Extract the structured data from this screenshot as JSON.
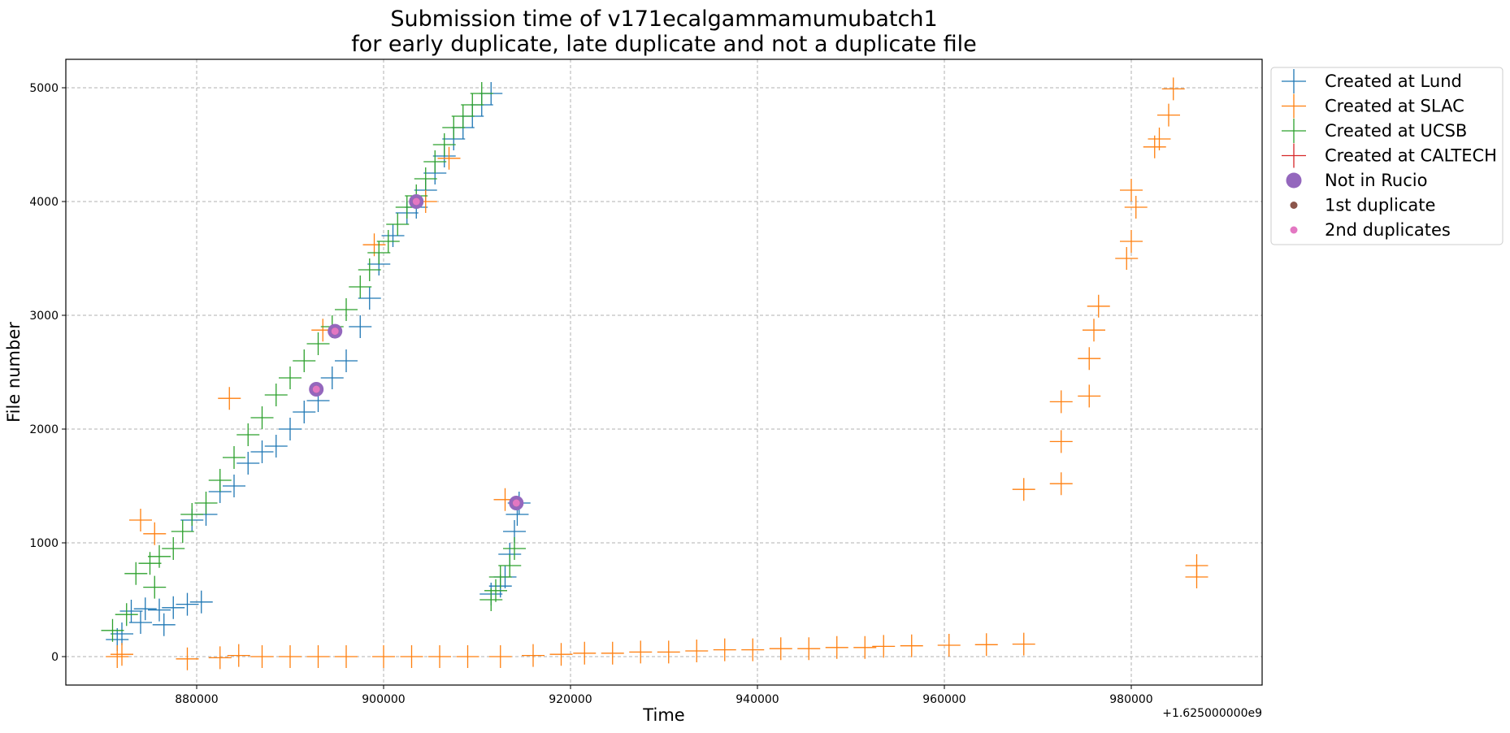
{
  "chart_data": {
    "type": "scatter",
    "title": [
      "Submission time of v171ecalgammamumubatch1",
      "for early duplicate, late duplicate and not a duplicate file"
    ],
    "xlabel": "Time",
    "ylabel": "File number",
    "x_offset_label": "+1.625000000e9",
    "xlim": [
      866000,
      994000
    ],
    "ylim": [
      -250,
      5250
    ],
    "xticks": [
      880000,
      900000,
      920000,
      940000,
      960000,
      980000
    ],
    "yticks": [
      0,
      1000,
      2000,
      3000,
      4000,
      5000
    ],
    "grid": true,
    "legend_position": "outside-top-right",
    "colors": {
      "lund": "#1f77b4",
      "slac": "#ff7f0e",
      "ucsb": "#2ca02c",
      "caltech": "#d62728",
      "not_in_rucio": "#9467bd",
      "first_duplicate": "#8c564b",
      "second_duplicates": "#e377c2"
    },
    "series": [
      {
        "name": "Created at Lund",
        "marker": "plus",
        "color": "#1f77b4",
        "points": [
          [
            871500,
            150
          ],
          [
            872000,
            200
          ],
          [
            873000,
            400
          ],
          [
            874500,
            420
          ],
          [
            876000,
            410
          ],
          [
            877500,
            430
          ],
          [
            879000,
            460
          ],
          [
            880500,
            480
          ],
          [
            874000,
            300
          ],
          [
            876500,
            280
          ],
          [
            879500,
            1200
          ],
          [
            881000,
            1250
          ],
          [
            882500,
            1450
          ],
          [
            884000,
            1500
          ],
          [
            885500,
            1700
          ],
          [
            887000,
            1800
          ],
          [
            888500,
            1850
          ],
          [
            890000,
            2000
          ],
          [
            891500,
            2150
          ],
          [
            893000,
            2250
          ],
          [
            894500,
            2450
          ],
          [
            896000,
            2600
          ],
          [
            897500,
            2900
          ],
          [
            898500,
            3150
          ],
          [
            899500,
            3450
          ],
          [
            901000,
            3700
          ],
          [
            902500,
            3900
          ],
          [
            903500,
            3950
          ],
          [
            904500,
            4100
          ],
          [
            905500,
            4250
          ],
          [
            906500,
            4400
          ],
          [
            907500,
            4550
          ],
          [
            908500,
            4650
          ],
          [
            909500,
            4750
          ],
          [
            910500,
            4850
          ],
          [
            911500,
            4950
          ],
          [
            911500,
            550
          ],
          [
            912500,
            620
          ],
          [
            913000,
            700
          ],
          [
            913500,
            900
          ],
          [
            914000,
            1100
          ],
          [
            914300,
            1250
          ],
          [
            914500,
            1350
          ]
        ]
      },
      {
        "name": "Created at SLAC",
        "marker": "plus",
        "color": "#ff7f0e",
        "points": [
          [
            871500,
            0
          ],
          [
            872000,
            20
          ],
          [
            874000,
            1200
          ],
          [
            875500,
            1080
          ],
          [
            879000,
            -20
          ],
          [
            882500,
            -10
          ],
          [
            884500,
            10
          ],
          [
            887000,
            0
          ],
          [
            890000,
            0
          ],
          [
            893000,
            0
          ],
          [
            896000,
            0
          ],
          [
            900000,
            0
          ],
          [
            903000,
            0
          ],
          [
            906000,
            0
          ],
          [
            909000,
            0
          ],
          [
            912500,
            0
          ],
          [
            916000,
            10
          ],
          [
            919000,
            20
          ],
          [
            921500,
            30
          ],
          [
            924500,
            30
          ],
          [
            927500,
            40
          ],
          [
            930500,
            40
          ],
          [
            933500,
            50
          ],
          [
            936500,
            60
          ],
          [
            939500,
            60
          ],
          [
            942500,
            70
          ],
          [
            945500,
            70
          ],
          [
            948500,
            80
          ],
          [
            951500,
            80
          ],
          [
            953500,
            90
          ],
          [
            956500,
            95
          ],
          [
            960500,
            100
          ],
          [
            964500,
            105
          ],
          [
            968500,
            110
          ],
          [
            883500,
            2270
          ],
          [
            893500,
            2870
          ],
          [
            899000,
            3620
          ],
          [
            904500,
            4000
          ],
          [
            907000,
            4380
          ],
          [
            913000,
            1380
          ],
          [
            968500,
            1470
          ],
          [
            972500,
            1520
          ],
          [
            972500,
            1890
          ],
          [
            972500,
            2240
          ],
          [
            975500,
            2290
          ],
          [
            975500,
            2620
          ],
          [
            976000,
            2870
          ],
          [
            976500,
            3080
          ],
          [
            979500,
            3500
          ],
          [
            980000,
            3650
          ],
          [
            980500,
            3950
          ],
          [
            980000,
            4100
          ],
          [
            982500,
            4480
          ],
          [
            983000,
            4550
          ],
          [
            984000,
            4760
          ],
          [
            984500,
            4990
          ],
          [
            987000,
            800
          ],
          [
            987000,
            700
          ]
        ]
      },
      {
        "name": "Created at UCSB",
        "marker": "plus",
        "color": "#2ca02c",
        "points": [
          [
            871000,
            230
          ],
          [
            872500,
            370
          ],
          [
            873500,
            730
          ],
          [
            875000,
            820
          ],
          [
            876000,
            880
          ],
          [
            877500,
            950
          ],
          [
            878500,
            1100
          ],
          [
            879500,
            1250
          ],
          [
            881000,
            1350
          ],
          [
            882500,
            1550
          ],
          [
            884000,
            1750
          ],
          [
            885500,
            1950
          ],
          [
            887000,
            2100
          ],
          [
            888500,
            2300
          ],
          [
            890000,
            2450
          ],
          [
            891500,
            2600
          ],
          [
            893000,
            2750
          ],
          [
            894500,
            2900
          ],
          [
            896000,
            3050
          ],
          [
            897500,
            3250
          ],
          [
            898500,
            3400
          ],
          [
            899500,
            3550
          ],
          [
            900500,
            3650
          ],
          [
            901500,
            3800
          ],
          [
            902500,
            3950
          ],
          [
            903500,
            4050
          ],
          [
            904500,
            4200
          ],
          [
            905500,
            4350
          ],
          [
            906500,
            4500
          ],
          [
            907500,
            4650
          ],
          [
            908500,
            4750
          ],
          [
            909500,
            4850
          ],
          [
            910500,
            4950
          ],
          [
            875500,
            610
          ],
          [
            911500,
            500
          ],
          [
            912000,
            580
          ],
          [
            912500,
            700
          ],
          [
            913500,
            800
          ],
          [
            914000,
            950
          ]
        ]
      },
      {
        "name": "Created at CALTECH",
        "marker": "plus",
        "color": "#d62728",
        "points": []
      },
      {
        "name": "Not in Rucio",
        "marker": "circle-large",
        "color": "#9467bd",
        "points": [
          [
            903500,
            4000
          ],
          [
            894800,
            2860
          ],
          [
            892800,
            2350
          ],
          [
            914200,
            1350
          ]
        ]
      },
      {
        "name": "1st duplicate",
        "marker": "circle-small",
        "color": "#8c564b",
        "points": [
          [
            903500,
            4000
          ],
          [
            894800,
            2860
          ],
          [
            892800,
            2350
          ],
          [
            914200,
            1350
          ]
        ]
      },
      {
        "name": "2nd duplicates",
        "marker": "circle-small",
        "color": "#e377c2",
        "points": [
          [
            903500,
            4000
          ],
          [
            894800,
            2860
          ],
          [
            892800,
            2350
          ],
          [
            914200,
            1350
          ]
        ]
      }
    ]
  }
}
